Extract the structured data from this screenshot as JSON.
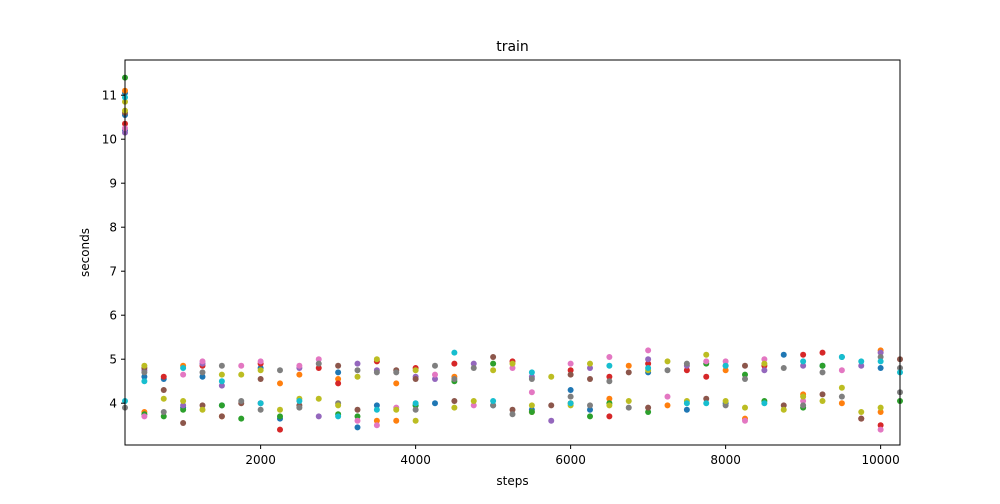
{
  "chart_data": {
    "type": "scatter",
    "title": "train",
    "xlabel": "steps",
    "ylabel": "seconds",
    "xlim": [
      250,
      10250
    ],
    "ylim": [
      3.05,
      11.8
    ],
    "xticks": [
      2000,
      4000,
      6000,
      8000,
      10000
    ],
    "yticks": [
      4,
      5,
      6,
      7,
      8,
      9,
      10,
      11
    ],
    "grid": false,
    "colors": [
      "#1f77b4",
      "#ff7f0e",
      "#2ca02c",
      "#d62728",
      "#9467bd",
      "#8c564b",
      "#e377c2",
      "#7f7f7f",
      "#bcbd22",
      "#17becf"
    ],
    "marker_size": 5,
    "series_points": [
      [
        [
          250,
          11.05
        ],
        [
          250,
          10.55
        ],
        [
          250,
          10.2
        ],
        [
          500,
          4.6
        ],
        [
          750,
          4.55
        ],
        [
          1000,
          3.9
        ],
        [
          1250,
          4.6
        ],
        [
          1500,
          3.95
        ],
        [
          2000,
          4.8
        ],
        [
          2250,
          3.65
        ],
        [
          3000,
          4.7
        ],
        [
          3250,
          3.45
        ],
        [
          3500,
          3.95
        ],
        [
          4000,
          3.95
        ],
        [
          4250,
          4.0
        ],
        [
          5000,
          3.95
        ],
        [
          5500,
          3.85
        ],
        [
          6000,
          4.3
        ],
        [
          6250,
          3.85
        ],
        [
          7000,
          4.7
        ],
        [
          7500,
          3.85
        ],
        [
          8000,
          4.0
        ],
        [
          8750,
          5.1
        ],
        [
          9250,
          4.85
        ],
        [
          9500,
          5.05
        ],
        [
          10000,
          4.8
        ]
      ],
      [
        [
          250,
          11.1
        ],
        [
          500,
          3.8
        ],
        [
          1000,
          4.85
        ],
        [
          1500,
          3.7
        ],
        [
          2250,
          4.45
        ],
        [
          2500,
          4.65
        ],
        [
          3000,
          4.55
        ],
        [
          3500,
          3.6
        ],
        [
          3750,
          4.45
        ],
        [
          3750,
          3.6
        ],
        [
          4500,
          4.6
        ],
        [
          5500,
          3.8
        ],
        [
          6000,
          4.0
        ],
        [
          6500,
          4.1
        ],
        [
          6750,
          4.85
        ],
        [
          7250,
          3.95
        ],
        [
          8000,
          4.75
        ],
        [
          8250,
          3.65
        ],
        [
          9000,
          4.2
        ],
        [
          9500,
          4.0
        ],
        [
          10000,
          5.2
        ],
        [
          10000,
          3.8
        ]
      ],
      [
        [
          250,
          11.4
        ],
        [
          500,
          3.75
        ],
        [
          750,
          3.7
        ],
        [
          1000,
          3.85
        ],
        [
          1500,
          3.95
        ],
        [
          1750,
          3.65
        ],
        [
          2250,
          3.7
        ],
        [
          3000,
          3.75
        ],
        [
          3250,
          3.7
        ],
        [
          4000,
          3.95
        ],
        [
          4500,
          4.5
        ],
        [
          5000,
          4.9
        ],
        [
          5500,
          3.8
        ],
        [
          6250,
          3.7
        ],
        [
          6500,
          4.0
        ],
        [
          7000,
          3.8
        ],
        [
          7750,
          4.9
        ],
        [
          8250,
          4.65
        ],
        [
          8500,
          4.05
        ],
        [
          9000,
          3.9
        ],
        [
          9250,
          4.85
        ],
        [
          10250,
          4.05
        ]
      ],
      [
        [
          250,
          10.35
        ],
        [
          750,
          4.6
        ],
        [
          1250,
          4.85
        ],
        [
          2000,
          4.9
        ],
        [
          2250,
          3.4
        ],
        [
          2750,
          4.8
        ],
        [
          3000,
          4.45
        ],
        [
          3500,
          4.95
        ],
        [
          4000,
          4.8
        ],
        [
          4500,
          4.9
        ],
        [
          5250,
          4.95
        ],
        [
          6000,
          4.75
        ],
        [
          6500,
          3.7
        ],
        [
          6500,
          4.6
        ],
        [
          7000,
          4.9
        ],
        [
          7500,
          4.75
        ],
        [
          7750,
          4.6
        ],
        [
          8500,
          4.85
        ],
        [
          9000,
          5.1
        ],
        [
          9250,
          5.15
        ],
        [
          9750,
          3.65
        ],
        [
          10000,
          3.5
        ]
      ],
      [
        [
          250,
          10.15
        ],
        [
          500,
          4.75
        ],
        [
          1000,
          3.95
        ],
        [
          1250,
          4.9
        ],
        [
          1500,
          4.4
        ],
        [
          2000,
          4.0
        ],
        [
          2500,
          4.8
        ],
        [
          2750,
          3.7
        ],
        [
          3250,
          4.9
        ],
        [
          3500,
          4.75
        ],
        [
          4000,
          4.6
        ],
        [
          4250,
          4.55
        ],
        [
          4750,
          4.9
        ],
        [
          5500,
          4.6
        ],
        [
          5750,
          3.6
        ],
        [
          6250,
          4.8
        ],
        [
          7000,
          5.0
        ],
        [
          7500,
          4.85
        ],
        [
          8000,
          4.85
        ],
        [
          8500,
          4.75
        ],
        [
          9000,
          4.85
        ],
        [
          9750,
          4.85
        ],
        [
          10000,
          5.15
        ]
      ],
      [
        [
          250,
          10.6
        ],
        [
          500,
          4.8
        ],
        [
          750,
          4.3
        ],
        [
          1000,
          3.55
        ],
        [
          1250,
          3.95
        ],
        [
          1500,
          3.7
        ],
        [
          1750,
          4.0
        ],
        [
          2000,
          4.55
        ],
        [
          2500,
          3.95
        ],
        [
          3000,
          4.85
        ],
        [
          3250,
          3.85
        ],
        [
          3750,
          4.75
        ],
        [
          4000,
          4.55
        ],
        [
          4500,
          4.05
        ],
        [
          5000,
          5.05
        ],
        [
          5250,
          3.85
        ],
        [
          5750,
          3.95
        ],
        [
          6000,
          4.65
        ],
        [
          6250,
          4.55
        ],
        [
          6750,
          4.7
        ],
        [
          7000,
          3.9
        ],
        [
          7750,
          4.1
        ],
        [
          8250,
          4.85
        ],
        [
          8750,
          3.95
        ],
        [
          9250,
          4.2
        ],
        [
          9750,
          3.65
        ],
        [
          10250,
          5.0
        ]
      ],
      [
        [
          250,
          10.25
        ],
        [
          500,
          3.7
        ],
        [
          1000,
          4.65
        ],
        [
          1250,
          4.95
        ],
        [
          1750,
          4.85
        ],
        [
          2000,
          4.95
        ],
        [
          2500,
          4.85
        ],
        [
          2750,
          5.0
        ],
        [
          3250,
          3.6
        ],
        [
          3500,
          3.5
        ],
        [
          3750,
          3.9
        ],
        [
          4250,
          4.65
        ],
        [
          4750,
          3.95
        ],
        [
          5250,
          4.8
        ],
        [
          5500,
          4.25
        ],
        [
          6000,
          4.9
        ],
        [
          6500,
          5.05
        ],
        [
          7000,
          5.2
        ],
        [
          7250,
          4.15
        ],
        [
          7750,
          4.95
        ],
        [
          8000,
          4.95
        ],
        [
          8250,
          3.6
        ],
        [
          8500,
          5.0
        ],
        [
          9000,
          4.05
        ],
        [
          9500,
          4.75
        ],
        [
          10000,
          3.4
        ]
      ],
      [
        [
          250,
          3.9
        ],
        [
          500,
          4.7
        ],
        [
          750,
          3.8
        ],
        [
          1250,
          4.7
        ],
        [
          1500,
          4.85
        ],
        [
          1750,
          4.05
        ],
        [
          2000,
          3.85
        ],
        [
          2250,
          4.75
        ],
        [
          2500,
          3.9
        ],
        [
          2750,
          4.9
        ],
        [
          3000,
          4.0
        ],
        [
          3250,
          4.75
        ],
        [
          3500,
          4.7
        ],
        [
          3750,
          4.7
        ],
        [
          4000,
          3.85
        ],
        [
          4250,
          4.85
        ],
        [
          4500,
          4.55
        ],
        [
          4750,
          4.8
        ],
        [
          5000,
          3.95
        ],
        [
          5250,
          3.75
        ],
        [
          5500,
          4.55
        ],
        [
          6000,
          4.15
        ],
        [
          6250,
          3.95
        ],
        [
          6500,
          4.5
        ],
        [
          6750,
          3.9
        ],
        [
          7250,
          4.75
        ],
        [
          7500,
          4.9
        ],
        [
          8000,
          3.95
        ],
        [
          8250,
          4.55
        ],
        [
          8750,
          4.8
        ],
        [
          9000,
          3.95
        ],
        [
          9250,
          4.7
        ],
        [
          9500,
          4.15
        ],
        [
          10000,
          5.05
        ],
        [
          10250,
          4.8
        ],
        [
          10250,
          4.25
        ]
      ],
      [
        [
          250,
          10.65
        ],
        [
          250,
          10.85
        ],
        [
          500,
          4.85
        ],
        [
          750,
          4.1
        ],
        [
          1000,
          4.05
        ],
        [
          1250,
          3.85
        ],
        [
          1500,
          4.65
        ],
        [
          1750,
          4.65
        ],
        [
          2000,
          4.75
        ],
        [
          2250,
          3.85
        ],
        [
          2500,
          4.1
        ],
        [
          2750,
          4.1
        ],
        [
          3000,
          3.95
        ],
        [
          3250,
          4.6
        ],
        [
          3500,
          5.0
        ],
        [
          3750,
          3.85
        ],
        [
          4000,
          4.75
        ],
        [
          4000,
          3.6
        ],
        [
          4500,
          3.9
        ],
        [
          4750,
          4.05
        ],
        [
          5000,
          4.75
        ],
        [
          5250,
          4.9
        ],
        [
          5500,
          3.95
        ],
        [
          5750,
          4.6
        ],
        [
          6000,
          3.95
        ],
        [
          6250,
          4.9
        ],
        [
          6500,
          3.95
        ],
        [
          6750,
          4.05
        ],
        [
          7000,
          4.75
        ],
        [
          7250,
          4.95
        ],
        [
          7500,
          4.05
        ],
        [
          7750,
          5.1
        ],
        [
          8000,
          4.05
        ],
        [
          8250,
          3.9
        ],
        [
          8500,
          4.9
        ],
        [
          8750,
          3.85
        ],
        [
          9000,
          4.15
        ],
        [
          9250,
          4.05
        ],
        [
          9500,
          4.35
        ],
        [
          9750,
          3.8
        ],
        [
          10000,
          3.9
        ]
      ],
      [
        [
          250,
          10.95
        ],
        [
          250,
          4.05
        ],
        [
          500,
          4.5
        ],
        [
          1000,
          4.8
        ],
        [
          1500,
          4.5
        ],
        [
          2000,
          4.0
        ],
        [
          2500,
          4.05
        ],
        [
          3000,
          3.7
        ],
        [
          3500,
          3.85
        ],
        [
          4000,
          4.0
        ],
        [
          4500,
          5.15
        ],
        [
          5000,
          4.05
        ],
        [
          5500,
          4.7
        ],
        [
          6000,
          4.0
        ],
        [
          6500,
          4.85
        ],
        [
          7000,
          4.8
        ],
        [
          7500,
          4.0
        ],
        [
          7750,
          4.0
        ],
        [
          8000,
          4.85
        ],
        [
          8500,
          4.0
        ],
        [
          9000,
          4.95
        ],
        [
          9500,
          5.05
        ],
        [
          9750,
          4.95
        ],
        [
          10000,
          4.95
        ],
        [
          10250,
          4.7
        ]
      ]
    ]
  }
}
